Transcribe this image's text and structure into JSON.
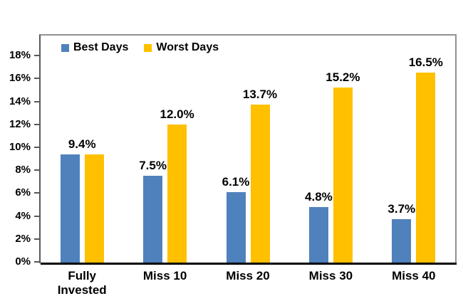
{
  "chart_data": {
    "type": "bar",
    "title": "",
    "categories": [
      "Fully Invested",
      "Miss 10",
      "Miss 20",
      "Miss 30",
      "Miss 40"
    ],
    "series": [
      {
        "name": "Best Days",
        "color": "#4F81BD",
        "values": [
          9.4,
          7.5,
          6.1,
          4.8,
          3.7
        ],
        "bar_labels": [
          "",
          "7.5%",
          "6.1%",
          "4.8%",
          "3.7%"
        ]
      },
      {
        "name": "Worst Days",
        "color": "#FFC000",
        "values": [
          9.4,
          12.0,
          13.7,
          15.2,
          16.5
        ],
        "bar_labels": [
          "",
          "12.0%",
          "13.7%",
          "15.2%",
          "16.5%"
        ]
      }
    ],
    "shared_bar_labels": [
      "9.4%",
      "",
      "",
      "",
      ""
    ],
    "y_axis": {
      "tick_values": [
        0,
        2,
        4,
        6,
        8,
        10,
        12,
        14,
        16,
        18
      ],
      "tick_labels": [
        "0%",
        "2%",
        "4%",
        "6%",
        "8%",
        "10%",
        "12%",
        "14%",
        "16%",
        "18%"
      ]
    },
    "ylim": [
      0,
      19.9
    ],
    "grid": false,
    "legend_position": "top-inside-left",
    "colors": {
      "axis_line": "#595959",
      "plot_border": "#919191",
      "baseline": "#000000",
      "label_text": "#000000",
      "background": "#FFFFFF"
    }
  }
}
